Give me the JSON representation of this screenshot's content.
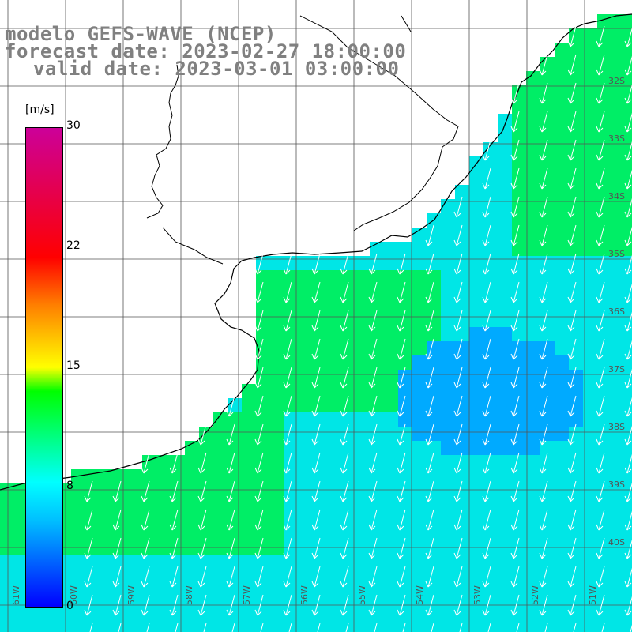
{
  "title": {
    "line1": "modelo GEFS-WAVE (NCEP)",
    "line2": "forecast date: 2023-02-27 18:00:00",
    "line3": "valid date: 2023-03-01 03:00:00"
  },
  "colorbar": {
    "unit": "[m/s]",
    "ticks": [
      "30",
      "22",
      "15",
      "8",
      "0"
    ],
    "tick_values": [
      30,
      22,
      15,
      8,
      0
    ],
    "range": [
      0,
      30
    ]
  },
  "map": {
    "lat_labels": [
      "32S",
      "33S",
      "34S",
      "35S",
      "36S",
      "37S",
      "38S",
      "39S",
      "40S"
    ],
    "lon_labels": [
      "61W",
      "60W",
      "59W",
      "58W",
      "57W",
      "56W",
      "55W",
      "54W",
      "53W",
      "52W",
      "51W"
    ],
    "colors": {
      "ocean_low": "#00aaff",
      "ocean_mid": "#00e6e6",
      "ocean_high": "#00ee66",
      "land": "#ffffff",
      "grid": "#555555",
      "coast": "#000000",
      "arrow": "#ffffff"
    }
  }
}
